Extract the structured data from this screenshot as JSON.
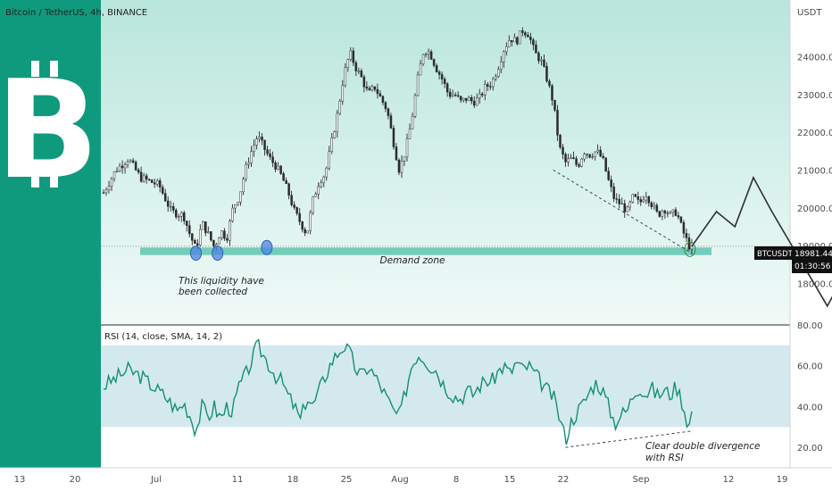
{
  "header": {
    "symbol_title": "Bitcoin / TetherUS, 4h, BINANCE",
    "currency": "USDT"
  },
  "logo": {
    "glyph": "B",
    "icon": "bitcoin-icon",
    "color": "#0f9a7e"
  },
  "colors": {
    "price_bg_top": "#b9e6dc",
    "price_bg_bottom": "#f1faf8",
    "demand_zone": "#5fc5b0",
    "rsi_line": "#138f74",
    "rsi_band": "#d4e9ee",
    "candle": "#2b2b2b",
    "marker": "#4c84e0",
    "sidebar": "#0f9a7e"
  },
  "badges": {
    "ticker": "BTCUSDT",
    "price": "18981.44",
    "countdown": "01:30:56"
  },
  "annotations": {
    "demand_zone": "Demand zone",
    "liquidity_line1": "This liquidity have",
    "liquidity_line2": "been collected",
    "divergence_line1": "Clear double divergence",
    "divergence_line2": "with RSI"
  },
  "rsi_panel": {
    "title": "RSI (14, close, SMA, 14, 2)",
    "band_upper": 70,
    "band_lower": 30
  },
  "chart_data": [
    {
      "type": "candlestick",
      "title": "Bitcoin / TetherUS, 4h, BINANCE",
      "ylabel": "USDT",
      "y_ticks": [
        18000,
        19000,
        20000,
        21000,
        22000,
        23000,
        24000
      ],
      "ylim": [
        16900,
        25500
      ],
      "x_ticks": [
        "13",
        "20",
        "Jul",
        "11",
        "18",
        "25",
        "Aug",
        "8",
        "15",
        "22",
        "Sep",
        "12",
        "19"
      ],
      "last_price": 18981.44,
      "demand_zone": [
        18750,
        18950
      ],
      "anchors": [
        [
          0,
          20400
        ],
        [
          2,
          21000
        ],
        [
          4,
          21300
        ],
        [
          6,
          20800
        ],
        [
          9,
          20600
        ],
        [
          11,
          19900
        ],
        [
          13,
          19800
        ],
        [
          14,
          19300
        ],
        [
          15,
          18900
        ],
        [
          16,
          19600
        ],
        [
          17,
          19300
        ],
        [
          18,
          18950
        ],
        [
          19,
          19400
        ],
        [
          20,
          19200
        ],
        [
          21,
          20000
        ],
        [
          22,
          20300
        ],
        [
          23,
          21000
        ],
        [
          24,
          21500
        ],
        [
          25,
          21900
        ],
        [
          26,
          21600
        ],
        [
          27,
          21300
        ],
        [
          28,
          21100
        ],
        [
          29,
          20800
        ],
        [
          30,
          20400
        ],
        [
          31,
          19900
        ],
        [
          32,
          19600
        ],
        [
          33,
          19300
        ],
        [
          34,
          20200
        ],
        [
          35,
          20700
        ],
        [
          36,
          20900
        ],
        [
          37,
          21700
        ],
        [
          38,
          22500
        ],
        [
          39,
          23500
        ],
        [
          40,
          24100
        ],
        [
          41,
          23700
        ],
        [
          42,
          23400
        ],
        [
          43,
          23000
        ],
        [
          44,
          23200
        ],
        [
          45,
          22900
        ],
        [
          46,
          22600
        ],
        [
          47,
          21800
        ],
        [
          48,
          21000
        ],
        [
          49,
          21500
        ],
        [
          50,
          22300
        ],
        [
          51,
          23400
        ],
        [
          52,
          24200
        ],
        [
          53,
          24100
        ],
        [
          54,
          23700
        ],
        [
          55,
          23400
        ],
        [
          56,
          23000
        ],
        [
          57,
          23000
        ],
        [
          58,
          22800
        ],
        [
          59,
          22900
        ],
        [
          60,
          22800
        ],
        [
          61,
          22900
        ],
        [
          62,
          23200
        ],
        [
          63,
          23300
        ],
        [
          64,
          23700
        ],
        [
          65,
          24200
        ],
        [
          66,
          24500
        ],
        [
          67,
          24400
        ],
        [
          68,
          24700
        ],
        [
          69,
          24600
        ],
        [
          70,
          24100
        ],
        [
          71,
          23900
        ],
        [
          72,
          23400
        ],
        [
          73,
          22800
        ],
        [
          74,
          21600
        ],
        [
          75,
          21200
        ],
        [
          76,
          21300
        ],
        [
          77,
          21100
        ],
        [
          78,
          21500
        ],
        [
          79,
          21400
        ],
        [
          80,
          21500
        ],
        [
          81,
          21300
        ],
        [
          82,
          20700
        ],
        [
          83,
          20200
        ],
        [
          84,
          20100
        ],
        [
          85,
          19900
        ],
        [
          86,
          20300
        ],
        [
          87,
          20100
        ],
        [
          88,
          20400
        ],
        [
          89,
          20100
        ],
        [
          90,
          19800
        ],
        [
          91,
          20000
        ],
        [
          92,
          19800
        ],
        [
          93,
          19900
        ],
        [
          94,
          19400
        ],
        [
          95,
          19000
        ],
        [
          95.5,
          18981
        ]
      ],
      "projection": [
        [
          18981,
          0
        ],
        [
          19900,
          4
        ],
        [
          19500,
          3
        ],
        [
          20800,
          3
        ],
        [
          19900,
          3
        ],
        [
          17400,
          9
        ],
        [
          18600,
          4
        ]
      ],
      "support_line": [
        [
          21000,
          0
        ],
        [
          18800,
          29
        ]
      ]
    },
    {
      "type": "line",
      "title": "RSI (14, close, SMA, 14, 2)",
      "y_ticks": [
        20,
        40,
        60,
        80
      ],
      "ylim": [
        10,
        80
      ],
      "band": [
        30,
        70
      ],
      "anchors": [
        [
          0,
          50
        ],
        [
          2,
          54
        ],
        [
          4,
          58
        ],
        [
          6,
          55
        ],
        [
          8,
          50
        ],
        [
          10,
          45
        ],
        [
          12,
          38
        ],
        [
          13,
          42
        ],
        [
          14,
          36
        ],
        [
          15,
          28
        ],
        [
          16,
          40
        ],
        [
          17,
          35
        ],
        [
          18,
          40
        ],
        [
          19,
          34
        ],
        [
          20,
          40
        ],
        [
          21,
          38
        ],
        [
          22,
          50
        ],
        [
          23,
          55
        ],
        [
          24,
          62
        ],
        [
          25,
          70
        ],
        [
          26,
          65
        ],
        [
          27,
          60
        ],
        [
          28,
          55
        ],
        [
          29,
          52
        ],
        [
          30,
          45
        ],
        [
          31,
          40
        ],
        [
          32,
          33
        ],
        [
          33,
          45
        ],
        [
          34,
          40
        ],
        [
          35,
          48
        ],
        [
          36,
          55
        ],
        [
          37,
          62
        ],
        [
          38,
          66
        ],
        [
          39,
          70
        ],
        [
          40,
          66
        ],
        [
          41,
          58
        ],
        [
          42,
          55
        ],
        [
          43,
          60
        ],
        [
          44,
          55
        ],
        [
          45,
          50
        ],
        [
          46,
          44
        ],
        [
          47,
          38
        ],
        [
          48,
          35
        ],
        [
          49,
          47
        ],
        [
          50,
          60
        ],
        [
          51,
          66
        ],
        [
          52,
          64
        ],
        [
          53,
          60
        ],
        [
          54,
          58
        ],
        [
          55,
          52
        ],
        [
          56,
          48
        ],
        [
          57,
          45
        ],
        [
          58,
          44
        ],
        [
          59,
          48
        ],
        [
          60,
          46
        ],
        [
          61,
          50
        ],
        [
          62,
          53
        ],
        [
          63,
          52
        ],
        [
          64,
          57
        ],
        [
          65,
          60
        ],
        [
          66,
          56
        ],
        [
          67,
          62
        ],
        [
          68,
          58
        ],
        [
          69,
          60
        ],
        [
          70,
          56
        ],
        [
          71,
          52
        ],
        [
          72,
          48
        ],
        [
          73,
          45
        ],
        [
          74,
          35
        ],
        [
          75,
          24
        ],
        [
          76,
          33
        ],
        [
          77,
          38
        ],
        [
          78,
          42
        ],
        [
          79,
          48
        ],
        [
          80,
          52
        ],
        [
          81,
          48
        ],
        [
          82,
          40
        ],
        [
          83,
          32
        ],
        [
          84,
          36
        ],
        [
          85,
          38
        ],
        [
          86,
          46
        ],
        [
          87,
          50
        ],
        [
          88,
          46
        ],
        [
          89,
          49
        ],
        [
          90,
          45
        ],
        [
          91,
          48
        ],
        [
          92,
          46
        ],
        [
          93,
          50
        ],
        [
          94,
          42
        ],
        [
          95,
          30
        ],
        [
          95.5,
          37
        ]
      ],
      "divergence_line": [
        [
          20,
          0
        ],
        [
          28,
          25
        ]
      ]
    }
  ]
}
